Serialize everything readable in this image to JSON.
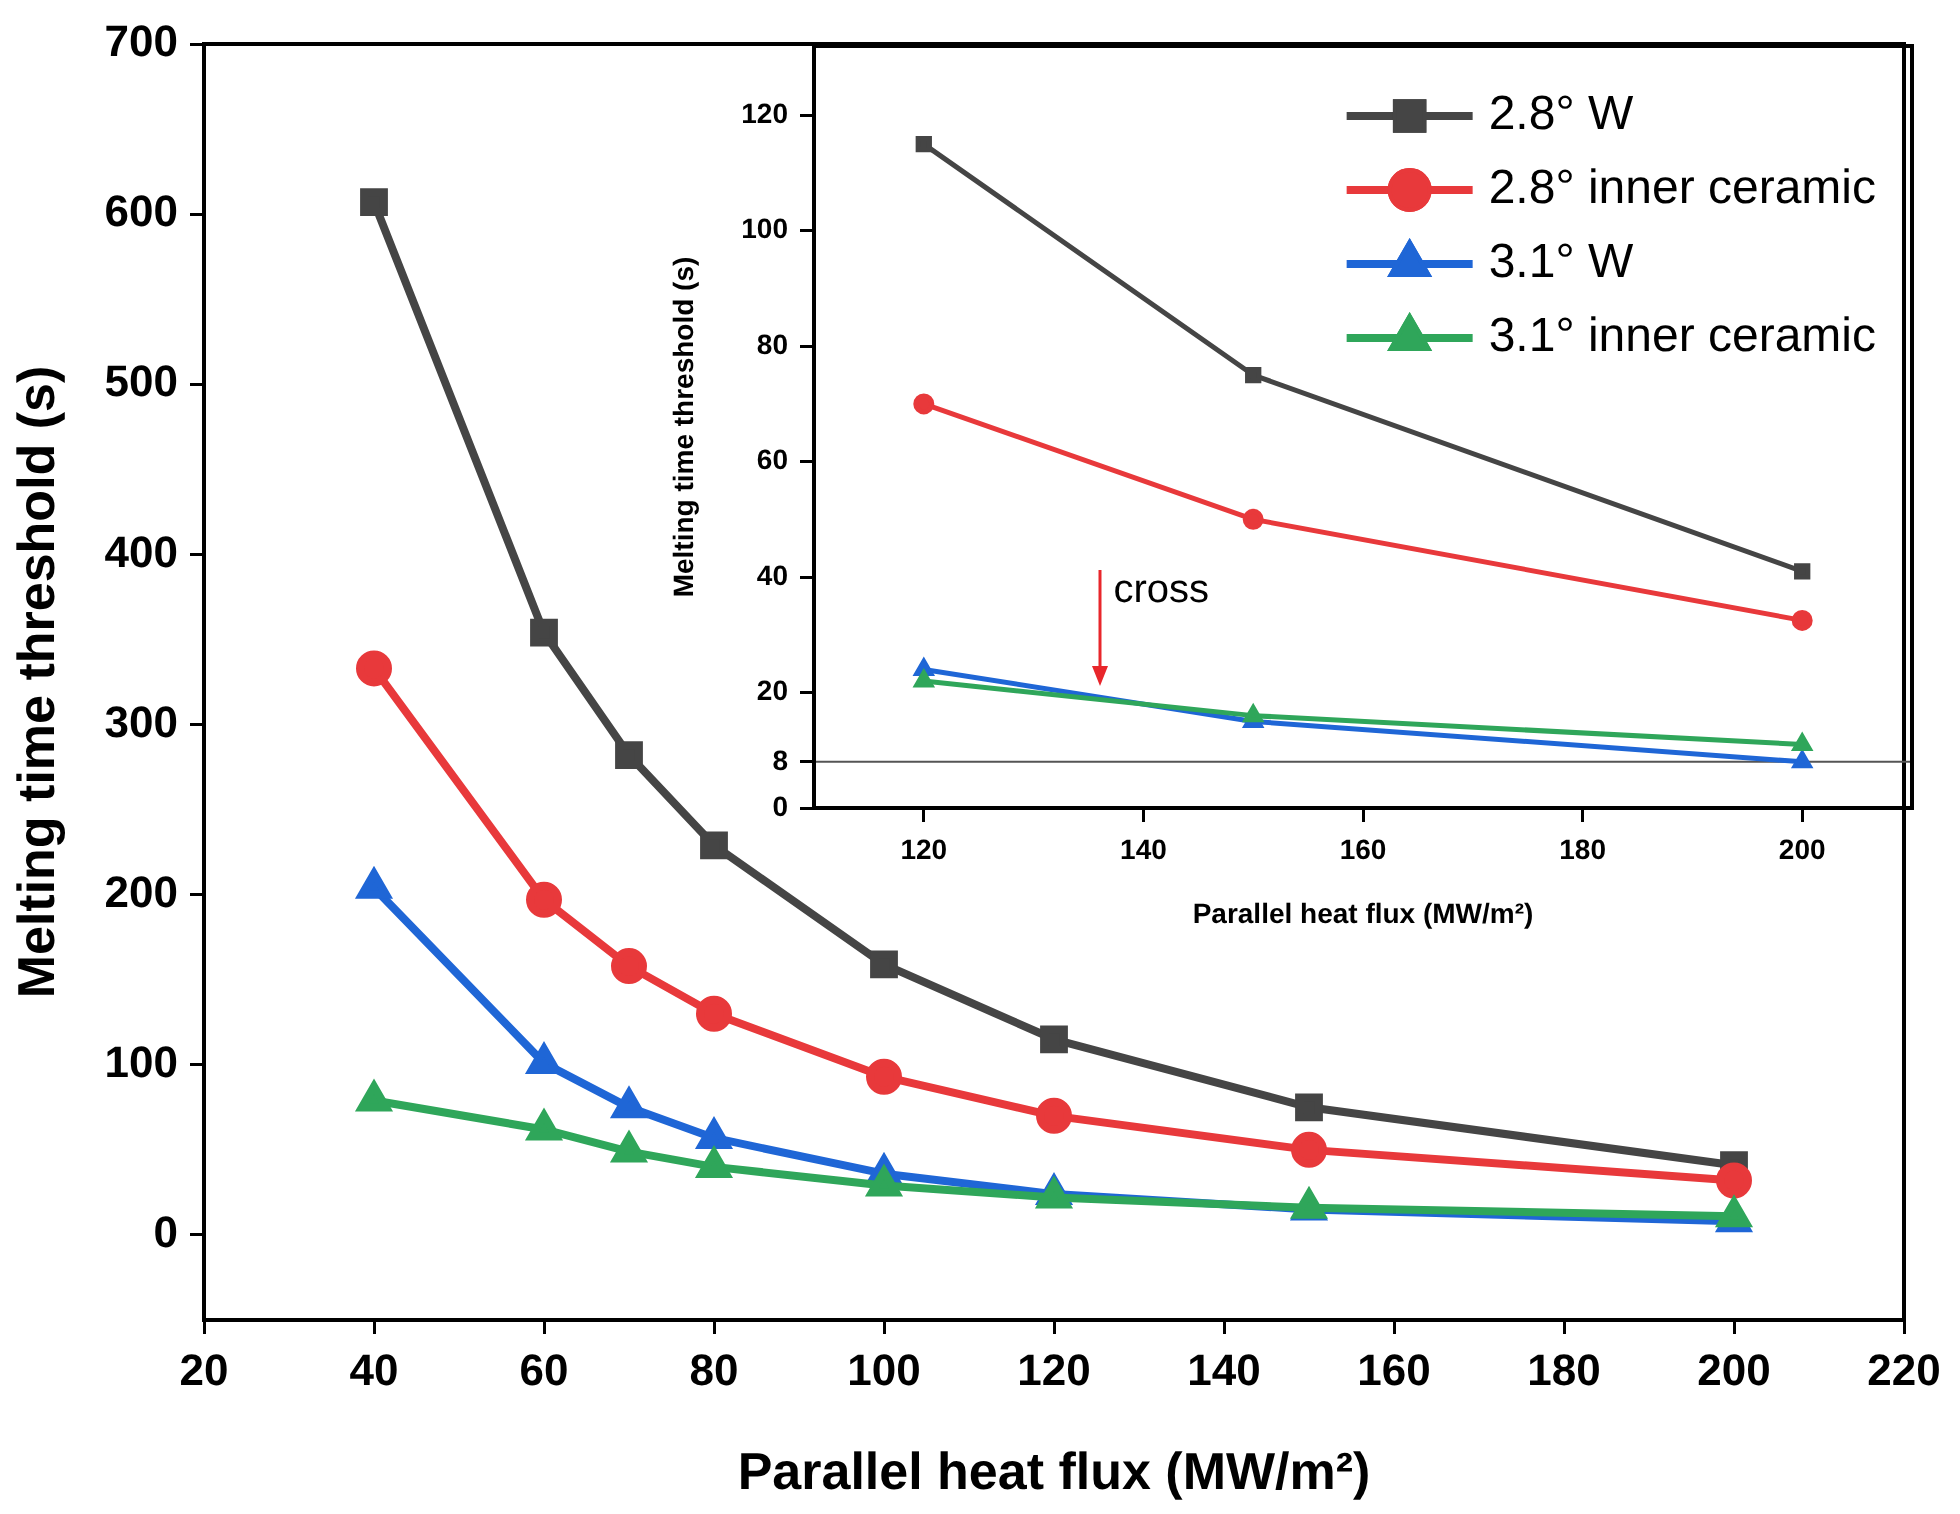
{
  "chart_data": [
    {
      "type": "line",
      "xlabel": "Parallel heat flux (MW/m²)",
      "ylabel": "Melting time threshold (s)",
      "x": [
        40,
        60,
        70,
        80,
        100,
        120,
        150,
        200
      ],
      "xlim": [
        20,
        220
      ],
      "xticks": [
        20,
        40,
        60,
        80,
        100,
        120,
        140,
        160,
        180,
        200,
        220
      ],
      "ylim": [
        -50,
        700
      ],
      "yticks": [
        0,
        100,
        200,
        300,
        400,
        500,
        600,
        700
      ],
      "legend": "top right",
      "series": [
        {
          "name": "2.8° W",
          "color": "#454545",
          "marker": "square",
          "values": [
            607,
            354,
            282,
            229,
            159,
            115,
            75,
            41
          ]
        },
        {
          "name": "2.8° inner ceramic",
          "color": "#e8393b",
          "marker": "circle",
          "values": [
            333,
            197,
            158,
            130,
            93,
            70,
            50,
            32
          ]
        },
        {
          "name": "3.1° W",
          "color": "#1f66d6",
          "marker": "triangle",
          "values": [
            204,
            101,
            75,
            57,
            36,
            24,
            15,
            8
          ]
        },
        {
          "name": "3.1° inner ceramic",
          "color": "#2fa65a",
          "marker": "triangle",
          "values": [
            79,
            62,
            49,
            40,
            29,
            22,
            16,
            11
          ]
        }
      ]
    },
    {
      "type": "line",
      "xlabel": "Parallel heat flux (MW/m²)",
      "ylabel": "Melting time threshold (s)",
      "x": [
        120,
        150,
        200
      ],
      "xlim": [
        110,
        210
      ],
      "xticks": [
        120,
        140,
        160,
        180,
        200
      ],
      "ylim": [
        0,
        132
      ],
      "yticks": [
        0,
        8,
        20,
        40,
        60,
        80,
        100,
        120
      ],
      "ref_lines": [
        {
          "axis": "y",
          "value": 8,
          "color": "#555555"
        }
      ],
      "annotations": [
        {
          "text": "cross",
          "x": 136,
          "y": 21
        }
      ],
      "series": [
        {
          "color": "#454545",
          "marker": "square",
          "values": [
            115,
            75,
            41
          ]
        },
        {
          "color": "#e8393b",
          "marker": "circle",
          "values": [
            70,
            50,
            32.5
          ]
        },
        {
          "color": "#1f66d6",
          "marker": "triangle",
          "values": [
            24,
            15,
            8
          ]
        },
        {
          "color": "#2fa65a",
          "marker": "triangle",
          "values": [
            22,
            16,
            11
          ]
        }
      ]
    }
  ]
}
